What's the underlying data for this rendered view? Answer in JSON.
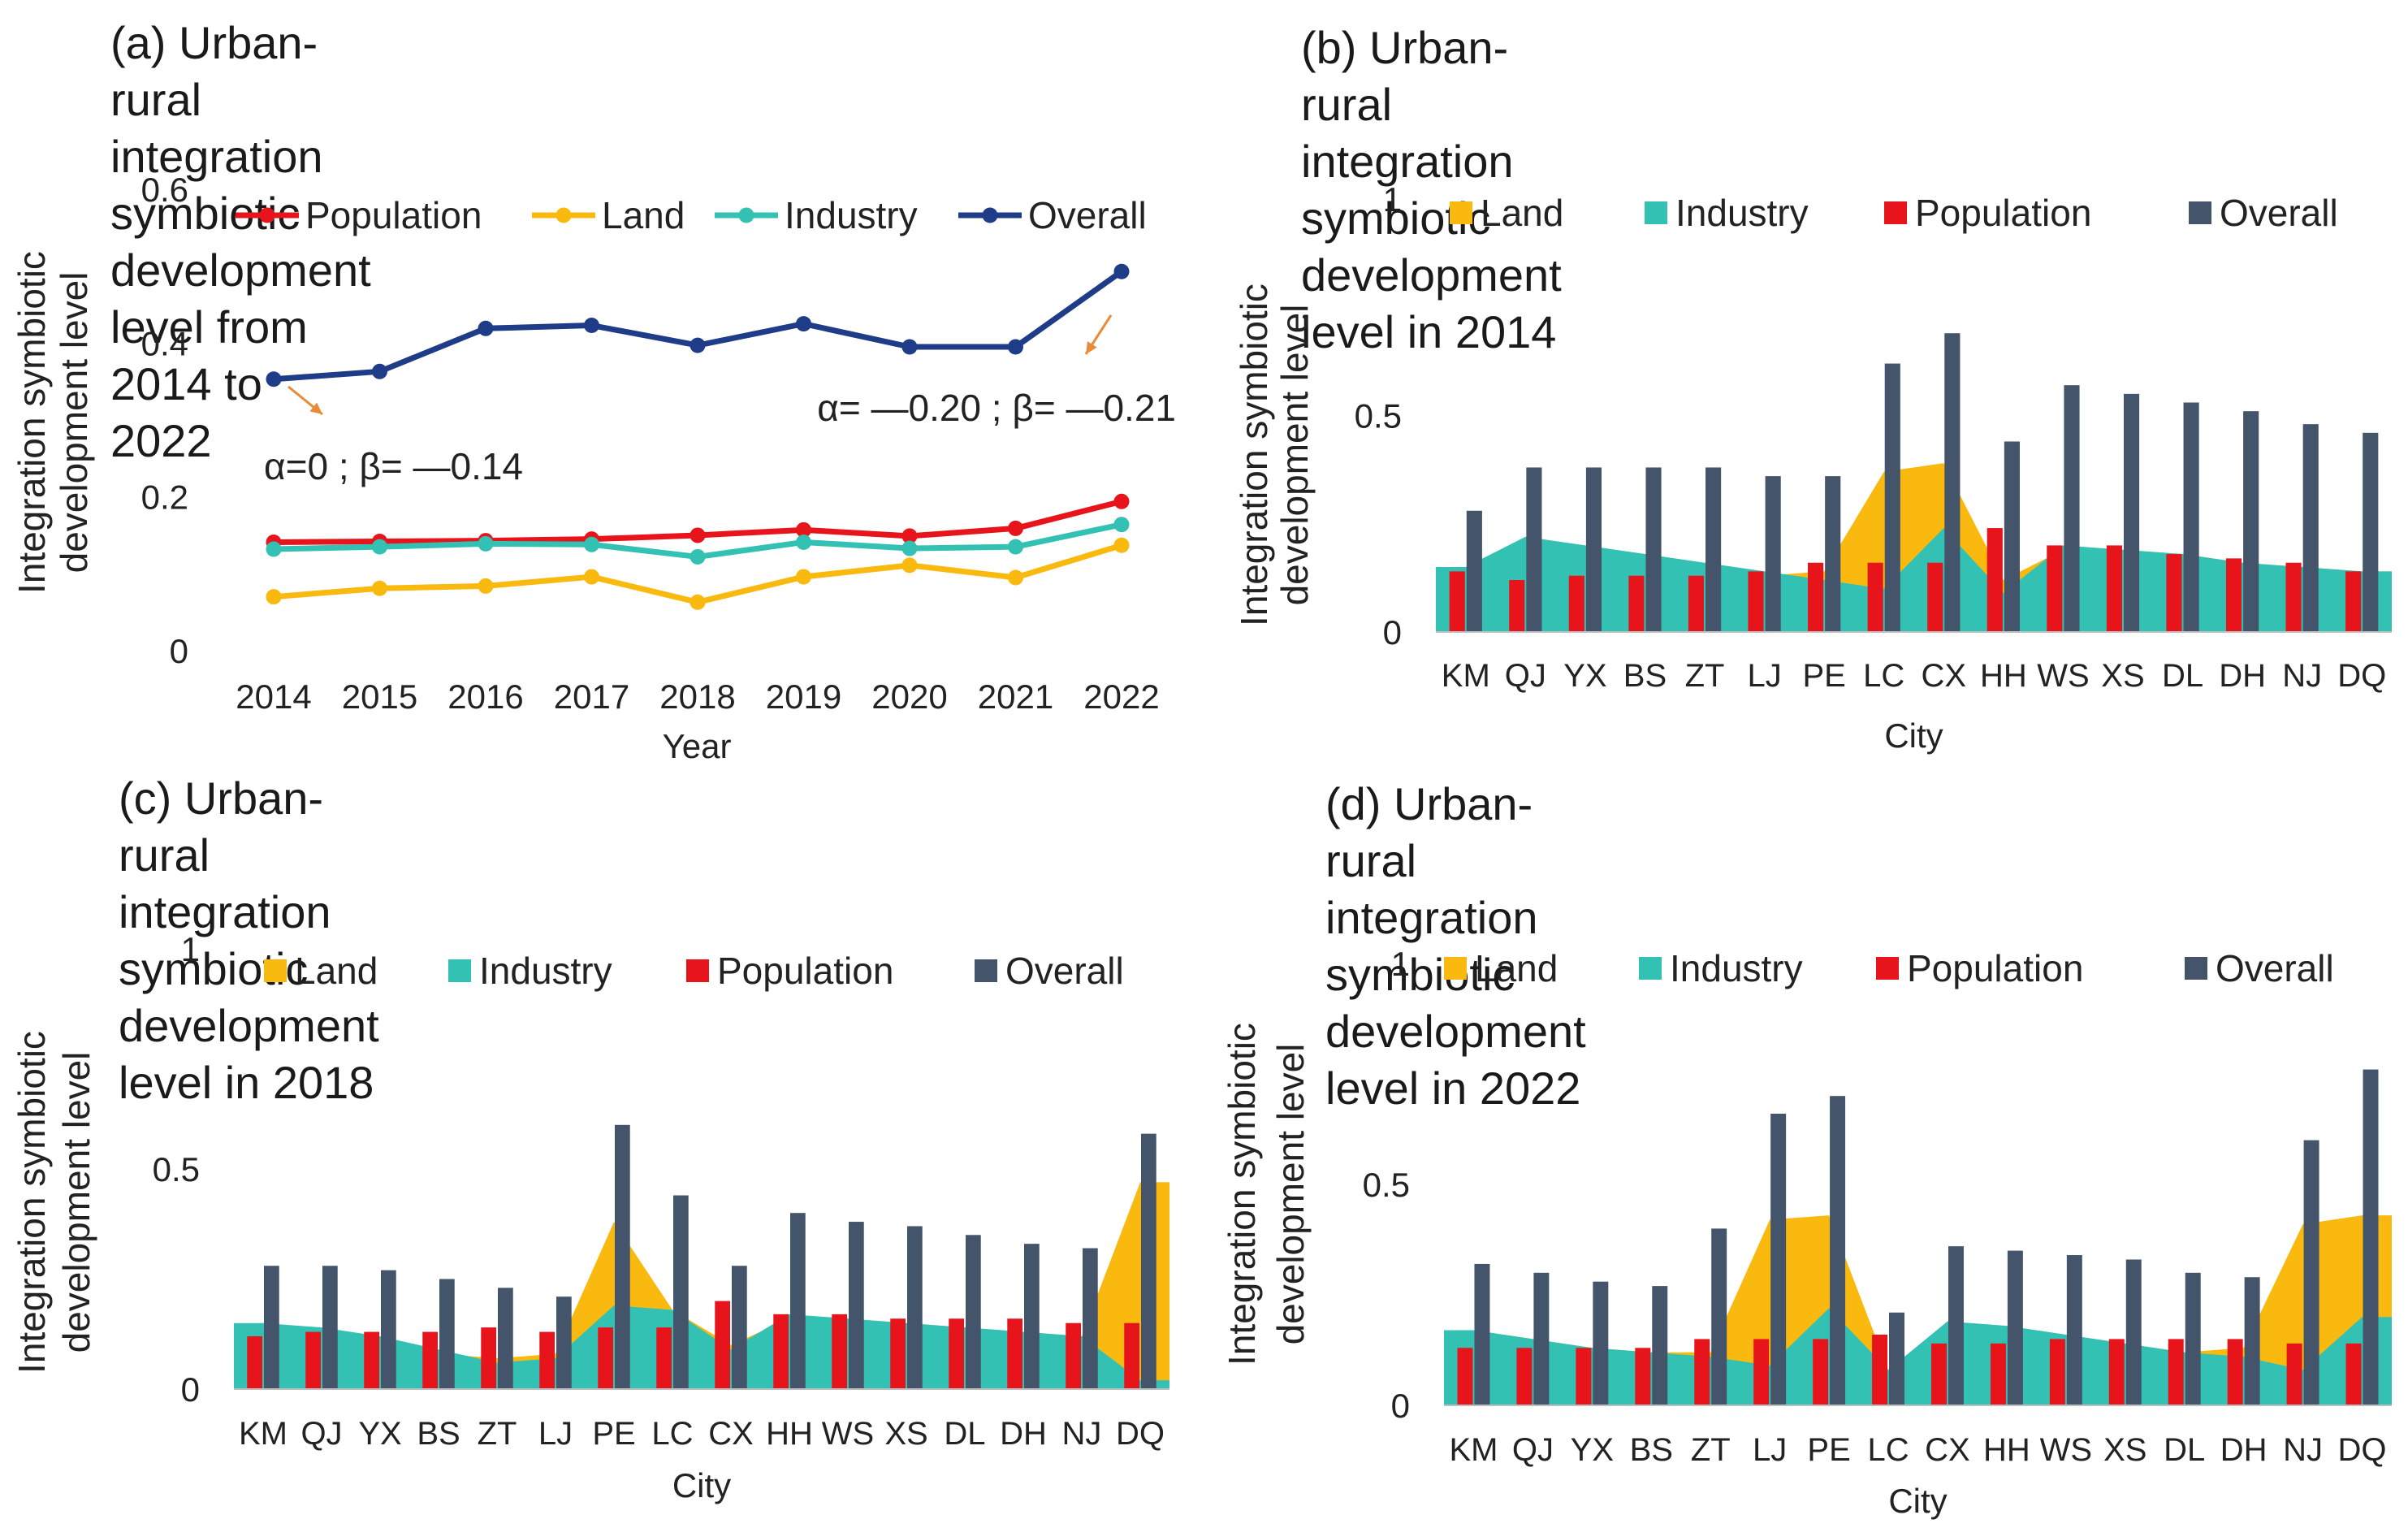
{
  "colors": {
    "population": "#e8141c",
    "land": "#f9b90e",
    "industry": "#33c1b3",
    "overall_line": "#1f3c88",
    "overall_bar": "#44546a",
    "arrow": "#e88b3a"
  },
  "chart_data": [
    {
      "id": "a",
      "type": "line",
      "title": "(a) Urban-rural integration symbiotic development level from 2014 to 2022",
      "title_lines": [
        "(a) Urban-rural integration symbiotic development",
        "level from 2014 to 2022"
      ],
      "xlabel": "Year",
      "ylabel_lines": [
        "Integration symbiotic",
        "development level"
      ],
      "x": [
        "2014",
        "2015",
        "2016",
        "2017",
        "2018",
        "2019",
        "2020",
        "2021",
        "2022"
      ],
      "ylim": [
        0,
        0.6
      ],
      "yticks": [
        "0",
        "0.2",
        "0.4",
        "0.6"
      ],
      "legend_order": [
        "Population",
        "Land",
        "Industry",
        "Overall"
      ],
      "series": [
        {
          "name": "Population",
          "color_key": "population",
          "values": [
            0.14,
            0.141,
            0.142,
            0.144,
            0.149,
            0.156,
            0.148,
            0.158,
            0.193
          ]
        },
        {
          "name": "Land",
          "color_key": "land",
          "values": [
            0.069,
            0.08,
            0.083,
            0.095,
            0.062,
            0.095,
            0.11,
            0.094,
            0.136
          ]
        },
        {
          "name": "Industry",
          "color_key": "industry",
          "values": [
            0.131,
            0.134,
            0.138,
            0.137,
            0.121,
            0.14,
            0.132,
            0.134,
            0.163
          ]
        },
        {
          "name": "Overall",
          "color_key": "overall_line",
          "values": [
            0.352,
            0.362,
            0.418,
            0.422,
            0.396,
            0.424,
            0.394,
            0.394,
            0.492
          ]
        }
      ],
      "annotations": [
        {
          "text": "α=0 ; β= —0.14"
        },
        {
          "text": "α= —0.20 ; β= —0.21"
        }
      ]
    },
    {
      "id": "b",
      "type": "bar",
      "title": "(b) Urban-rural integration symbiotic development level in 2014",
      "title_lines": [
        "(b) Urban-rural integration symbiotic development",
        "level in 2014"
      ],
      "xlabel": "City",
      "ylabel_lines": [
        "Integration symbiotic",
        "development level"
      ],
      "categories": [
        "KM",
        "QJ",
        "YX",
        "BS",
        "ZT",
        "LJ",
        "PE",
        "LC",
        "CX",
        "HH",
        "WS",
        "XS",
        "DL",
        "DH",
        "NJ",
        "DQ"
      ],
      "ylim": [
        0,
        1
      ],
      "yticks": [
        "0",
        "0.5",
        "1"
      ],
      "legend_order": [
        "Land",
        "Industry",
        "Population",
        "Overall"
      ],
      "series": [
        {
          "name": "Land",
          "kind": "area",
          "color_key": "land",
          "values": [
            0.14,
            0.21,
            0.19,
            0.17,
            0.15,
            0.13,
            0.14,
            0.37,
            0.39,
            0.12,
            0.19,
            0.19,
            0.18,
            0.16,
            0.15,
            0.14
          ]
        },
        {
          "name": "Industry",
          "kind": "area",
          "color_key": "industry",
          "values": [
            0.15,
            0.22,
            0.2,
            0.18,
            0.16,
            0.14,
            0.12,
            0.1,
            0.24,
            0.09,
            0.2,
            0.19,
            0.18,
            0.16,
            0.15,
            0.14
          ]
        },
        {
          "name": "Population",
          "kind": "bar",
          "color_key": "population",
          "values": [
            0.14,
            0.12,
            0.13,
            0.13,
            0.13,
            0.14,
            0.16,
            0.16,
            0.16,
            0.24,
            0.2,
            0.2,
            0.18,
            0.17,
            0.16,
            0.14
          ]
        },
        {
          "name": "Overall",
          "kind": "bar",
          "color_key": "overall_bar",
          "values": [
            0.28,
            0.38,
            0.38,
            0.38,
            0.38,
            0.36,
            0.36,
            0.62,
            0.69,
            0.44,
            0.57,
            0.55,
            0.53,
            0.51,
            0.48,
            0.46
          ]
        }
      ]
    },
    {
      "id": "c",
      "type": "bar",
      "title": "(c) Urban-rural integration symbiotic development level in 2018",
      "title_lines": [
        "(c) Urban-rural integration symbiotic development",
        "level in 2018"
      ],
      "xlabel": "City",
      "ylabel_lines": [
        "Integration symbiotic",
        "development level"
      ],
      "categories": [
        "KM",
        "QJ",
        "YX",
        "BS",
        "ZT",
        "LJ",
        "PE",
        "LC",
        "CX",
        "HH",
        "WS",
        "XS",
        "DL",
        "DH",
        "NJ",
        "DQ"
      ],
      "ylim": [
        0,
        1
      ],
      "yticks": [
        "0",
        "0.5",
        "1"
      ],
      "legend_order": [
        "Land",
        "Industry",
        "Population",
        "Overall"
      ],
      "series": [
        {
          "name": "Land",
          "kind": "area",
          "color_key": "land",
          "values": [
            0.14,
            0.13,
            0.11,
            0.08,
            0.07,
            0.08,
            0.38,
            0.18,
            0.1,
            0.16,
            0.16,
            0.15,
            0.14,
            0.13,
            0.12,
            0.47
          ]
        },
        {
          "name": "Industry",
          "kind": "area",
          "color_key": "industry",
          "values": [
            0.15,
            0.14,
            0.12,
            0.09,
            0.06,
            0.07,
            0.19,
            0.18,
            0.09,
            0.17,
            0.16,
            0.15,
            0.14,
            0.13,
            0.12,
            0.02
          ]
        },
        {
          "name": "Population",
          "kind": "bar",
          "color_key": "population",
          "values": [
            0.12,
            0.13,
            0.13,
            0.13,
            0.14,
            0.13,
            0.14,
            0.14,
            0.2,
            0.17,
            0.17,
            0.16,
            0.16,
            0.16,
            0.15,
            0.15
          ]
        },
        {
          "name": "Overall",
          "kind": "bar",
          "color_key": "overall_bar",
          "values": [
            0.28,
            0.28,
            0.27,
            0.25,
            0.23,
            0.21,
            0.6,
            0.44,
            0.28,
            0.4,
            0.38,
            0.37,
            0.35,
            0.33,
            0.32,
            0.58
          ]
        }
      ]
    },
    {
      "id": "d",
      "type": "bar",
      "title": "(d) Urban-rural integration symbiotic development level in 2022",
      "title_lines": [
        "(d) Urban-rural integration symbiotic development",
        "level in 2022"
      ],
      "xlabel": "City",
      "ylabel_lines": [
        "Integration symbiotic",
        "development level"
      ],
      "categories": [
        "KM",
        "QJ",
        "YX",
        "BS",
        "ZT",
        "LJ",
        "PE",
        "LC",
        "CX",
        "HH",
        "WS",
        "XS",
        "DL",
        "DH",
        "NJ",
        "DQ"
      ],
      "ylim": [
        0,
        1
      ],
      "yticks": [
        "0",
        "0.5",
        "1"
      ],
      "legend_order": [
        "Land",
        "Industry",
        "Population",
        "Overall"
      ],
      "series": [
        {
          "name": "Land",
          "kind": "area",
          "color_key": "land",
          "values": [
            0.17,
            0.15,
            0.13,
            0.12,
            0.12,
            0.42,
            0.43,
            0.08,
            0.18,
            0.17,
            0.15,
            0.14,
            0.12,
            0.13,
            0.41,
            0.43
          ]
        },
        {
          "name": "Industry",
          "kind": "area",
          "color_key": "industry",
          "values": [
            0.17,
            0.15,
            0.13,
            0.12,
            0.11,
            0.09,
            0.22,
            0.08,
            0.19,
            0.18,
            0.16,
            0.14,
            0.12,
            0.11,
            0.08,
            0.2
          ]
        },
        {
          "name": "Population",
          "kind": "bar",
          "color_key": "population",
          "values": [
            0.13,
            0.13,
            0.13,
            0.13,
            0.15,
            0.15,
            0.15,
            0.16,
            0.14,
            0.14,
            0.15,
            0.15,
            0.15,
            0.15,
            0.14,
            0.14
          ]
        },
        {
          "name": "Overall",
          "kind": "bar",
          "color_key": "overall_bar",
          "values": [
            0.32,
            0.3,
            0.28,
            0.27,
            0.4,
            0.66,
            0.7,
            0.21,
            0.36,
            0.35,
            0.34,
            0.33,
            0.3,
            0.29,
            0.6,
            0.76
          ]
        }
      ]
    }
  ]
}
